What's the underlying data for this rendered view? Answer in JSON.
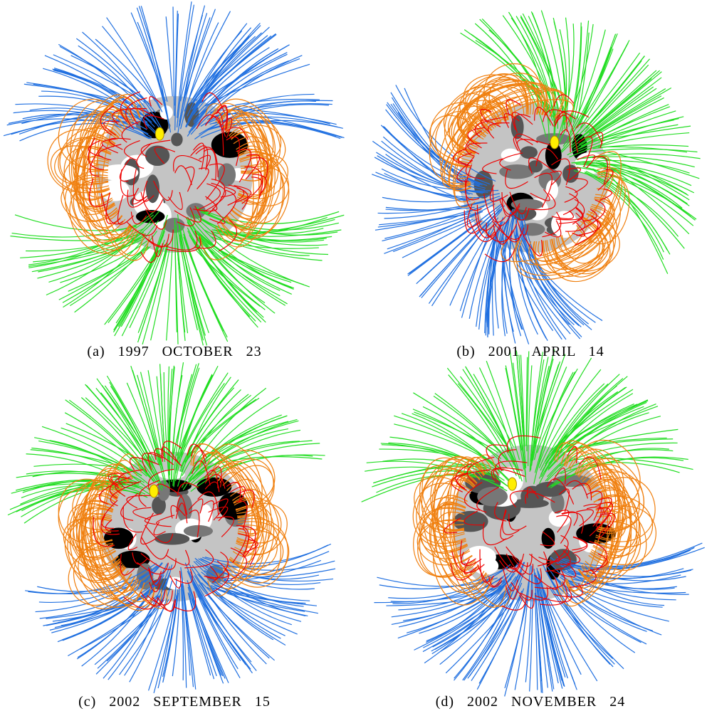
{
  "panels": [
    {
      "caption": "(a) 1997 OCTOBER 23"
    },
    {
      "caption": "(b) 2001 APRIL 14"
    },
    {
      "caption": "(c) 2002 SEPTEMBER 15"
    },
    {
      "caption": "(d) 2002 NOVEMBER 24"
    }
  ]
}
